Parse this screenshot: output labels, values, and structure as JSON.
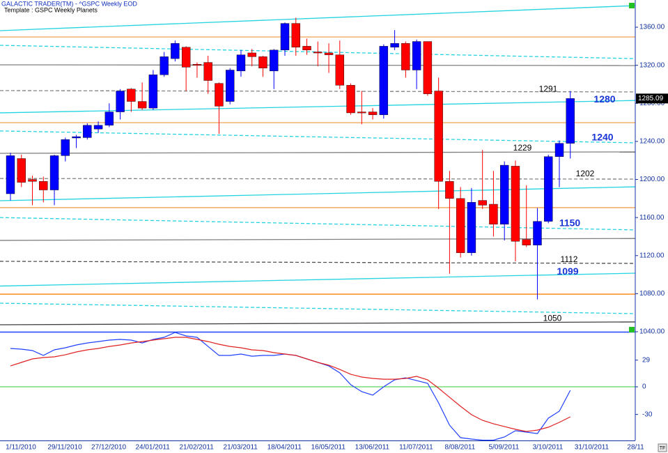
{
  "chart_data": [
    {
      "type": "candlestick",
      "title": "GALACTIC TRADER(TM) - ^GSPC Weekly EOD",
      "subtitle": "Template : GSPC Weekly Planets",
      "up_color": "#0000ff",
      "down_color": "#ff0000",
      "open": [
        1185,
        1222,
        1200,
        1198,
        1189,
        1225,
        1243.6,
        1244,
        1253,
        1257,
        1271,
        1295,
        1282,
        1275,
        1310,
        1327,
        1339,
        1321,
        1323,
        1301,
        1282,
        1314,
        1333,
        1329,
        1314,
        1336,
        1364,
        1340,
        1334,
        1333,
        1331,
        1299,
        1271,
        1271,
        1268,
        1339,
        1343,
        1315,
        1345,
        1293,
        1198,
        1180,
        1123,
        1178,
        1174,
        1153,
        1214,
        1137,
        1131,
        1156,
        1224,
        1238
      ],
      "high": [
        1228,
        1226,
        1204,
        1203,
        1226,
        1244,
        1247,
        1259,
        1261,
        1280,
        1295,
        1296,
        1302,
        1315,
        1334,
        1346,
        1340,
        1323,
        1330,
        1302,
        1317,
        1336,
        1337,
        1330,
        1337,
        1365,
        1370,
        1348,
        1345,
        1343,
        1346,
        1301,
        1293,
        1275,
        1342,
        1357,
        1345,
        1347,
        1345,
        1307,
        1209,
        1192,
        1191,
        1231,
        1209,
        1219,
        1220,
        1194,
        1170,
        1226,
        1241,
        1293
      ],
      "low": [
        1178,
        1192,
        1173,
        1176,
        1173,
        1219,
        1233,
        1242,
        1249,
        1255,
        1263,
        1271,
        1273,
        1273,
        1308,
        1324,
        1293,
        1307,
        1290,
        1248,
        1279,
        1308,
        1319,
        1308,
        1295,
        1330,
        1330,
        1331,
        1319,
        1312,
        1295,
        1268,
        1258,
        1263,
        1264,
        1336,
        1307,
        1295,
        1288,
        1169,
        1101,
        1118,
        1120,
        1169,
        1140,
        1136,
        1114,
        1129,
        1074,
        1154,
        1192,
        1222
      ],
      "close": [
        1225,
        1197,
        1198,
        1189,
        1225,
        1242,
        1245,
        1257,
        1257,
        1271,
        1293,
        1282,
        1275,
        1310,
        1329,
        1343,
        1318,
        1320,
        1304,
        1277,
        1315,
        1331,
        1329,
        1317,
        1336,
        1364,
        1339,
        1336,
        1333,
        1331,
        1299,
        1270,
        1270,
        1268,
        1340,
        1343,
        1315,
        1345,
        1290,
        1198,
        1180,
        1123,
        1176,
        1173,
        1153,
        1215,
        1135,
        1131,
        1156,
        1224,
        1238,
        1285.09
      ],
      "ylim": [
        1040,
        1388.6
      ],
      "yticks": [
        {
          "value": 1040,
          "label": "1040.00"
        },
        {
          "value": 1080,
          "label": "1080.00"
        },
        {
          "value": 1120,
          "label": "1120.00"
        },
        {
          "value": 1160,
          "label": "1160.00"
        },
        {
          "value": 1200,
          "label": "1200.00"
        },
        {
          "value": 1240,
          "label": "1240.00"
        },
        {
          "value": 1280,
          "label": "1280.00"
        },
        {
          "value": 1320,
          "label": "1320.00"
        },
        {
          "value": 1360,
          "label": "1360.00"
        }
      ],
      "lines": [
        {
          "start": 1356.4,
          "end": 1382.7,
          "color": "#22d3e0",
          "dashed": false
        },
        {
          "start": 1349.8,
          "end": 1349.8,
          "color": "#f0a050",
          "dashed": false
        },
        {
          "start": 1341,
          "end": 1327,
          "color": "#22d3e0",
          "dashed": true
        },
        {
          "start": 1320.5,
          "end": 1319.7,
          "color": "#808080",
          "dashed": false
        },
        {
          "start": 1293.4,
          "end": 1292,
          "color": "#808080",
          "dashed": true
        },
        {
          "start": 1270,
          "end": 1283,
          "color": "#22d3e0",
          "dashed": false
        },
        {
          "start": 1259.7,
          "end": 1259.7,
          "color": "#f0a050",
          "dashed": false
        },
        {
          "start": 1251,
          "end": 1238.5,
          "color": "#22d3e0",
          "dashed": true
        },
        {
          "start": 1227.5,
          "end": 1229,
          "color": "#808080",
          "dashed": false
        },
        {
          "start": 1201,
          "end": 1200.4,
          "color": "#808080",
          "dashed": true
        },
        {
          "start": 1177.7,
          "end": 1192.3,
          "color": "#22d3e0",
          "dashed": false
        },
        {
          "start": 1170.4,
          "end": 1170.4,
          "color": "#f0a050",
          "dashed": false
        },
        {
          "start": 1160,
          "end": 1147,
          "color": "#22d3e0",
          "dashed": true
        },
        {
          "start": 1136,
          "end": 1138,
          "color": "#808080",
          "dashed": false
        },
        {
          "start": 1114,
          "end": 1111.8,
          "color": "#505050",
          "dashed": true
        },
        {
          "start": 1088,
          "end": 1101.5,
          "color": "#22d3e0",
          "dashed": false
        },
        {
          "start": 1079.5,
          "end": 1079.5,
          "color": "#ff8000",
          "dashed": false
        },
        {
          "start": 1070,
          "end": 1059,
          "color": "#22d3e0",
          "dashed": true
        },
        {
          "start": 1047.3,
          "end": 1050.3,
          "color": "#404040",
          "dashed": false
        }
      ],
      "annotations": [
        {
          "value": 1291,
          "color": "#000000",
          "bold": false
        },
        {
          "value": 1280,
          "color": "#1a35d8",
          "bold": true
        },
        {
          "value": 1240,
          "color": "#1a35d8",
          "bold": true
        },
        {
          "value": 1229,
          "color": "#000000",
          "bold": false
        },
        {
          "value": 1202,
          "color": "#000000",
          "bold": false
        },
        {
          "value": 1150,
          "color": "#1a35d8",
          "bold": true
        },
        {
          "value": 1112,
          "color": "#000000",
          "bold": false
        },
        {
          "value": 1099,
          "color": "#1a35d8",
          "bold": true
        },
        {
          "value": 1050,
          "color": "#000000",
          "bold": false
        }
      ]
    },
    {
      "type": "line",
      "categories": [
        "1/11/2010",
        null,
        null,
        null,
        "29/11/2010",
        null,
        null,
        null,
        "27/12/2010",
        null,
        null,
        null,
        "24/01/2011",
        null,
        null,
        null,
        "21/02/2011",
        null,
        null,
        null,
        "21/03/2011",
        null,
        null,
        null,
        "18/04/2011",
        null,
        null,
        null,
        "16/05/2011",
        null,
        null,
        null,
        "13/06/2011",
        null,
        null,
        null,
        "11/07/2011",
        null,
        null,
        null,
        "8/08/2011",
        null,
        null,
        null,
        "5/09/2011",
        null,
        null,
        null,
        "3/10/2011",
        null,
        null,
        null,
        "31/10/2011",
        null,
        null,
        null,
        "28/11"
      ],
      "series": [
        {
          "color": "#2040ff",
          "values": [
            41.7,
            40.9,
            39.4,
            34.1,
            40.2,
            42.4,
            45.5,
            47.7,
            49.2,
            50.8,
            51.5,
            50.8,
            47.7,
            51.5,
            53.8,
            59.1,
            55.3,
            53.8,
            43.9,
            34.1,
            34.1,
            35.6,
            33.3,
            34.1,
            34.1,
            35.6,
            34.1,
            30.3,
            26.5,
            22.7,
            15.2,
            2.3,
            -5.3,
            -9.1,
            0,
            7.6,
            9.8,
            6.8,
            3.8,
            -17.4,
            -41.7,
            -55.3,
            -56.8,
            -58,
            -58,
            -54.5,
            -47.7,
            -49.2,
            -50.8,
            -34.1,
            -26.5,
            -3.8,
            null,
            null,
            null,
            null,
            null
          ]
        },
        {
          "color": "#e02020",
          "values": [
            22.7,
            26.5,
            30.3,
            31.8,
            32.6,
            34.8,
            37.9,
            40.2,
            41.7,
            43.9,
            45.5,
            47.7,
            49.2,
            50.8,
            52.3,
            53.8,
            53.8,
            51.5,
            49.2,
            46.2,
            43.9,
            42.4,
            40.2,
            39.4,
            37.1,
            35.6,
            34.1,
            30.3,
            26.5,
            23.5,
            18.9,
            13.6,
            10.6,
            9.1,
            8.3,
            8.3,
            9.1,
            11.4,
            7.6,
            -1.5,
            -11.4,
            -21.2,
            -30.3,
            -36.4,
            -40.2,
            -43.2,
            -46.2,
            -48.5,
            -47,
            -43.9,
            -38.6,
            -32.6,
            null,
            null,
            null,
            null,
            null
          ]
        }
      ],
      "ylim": [
        -58.3,
        59.1
      ],
      "yticks": [
        29,
        0,
        -30
      ],
      "hline": 0,
      "hline_color": "#33cc33"
    }
  ]
}
